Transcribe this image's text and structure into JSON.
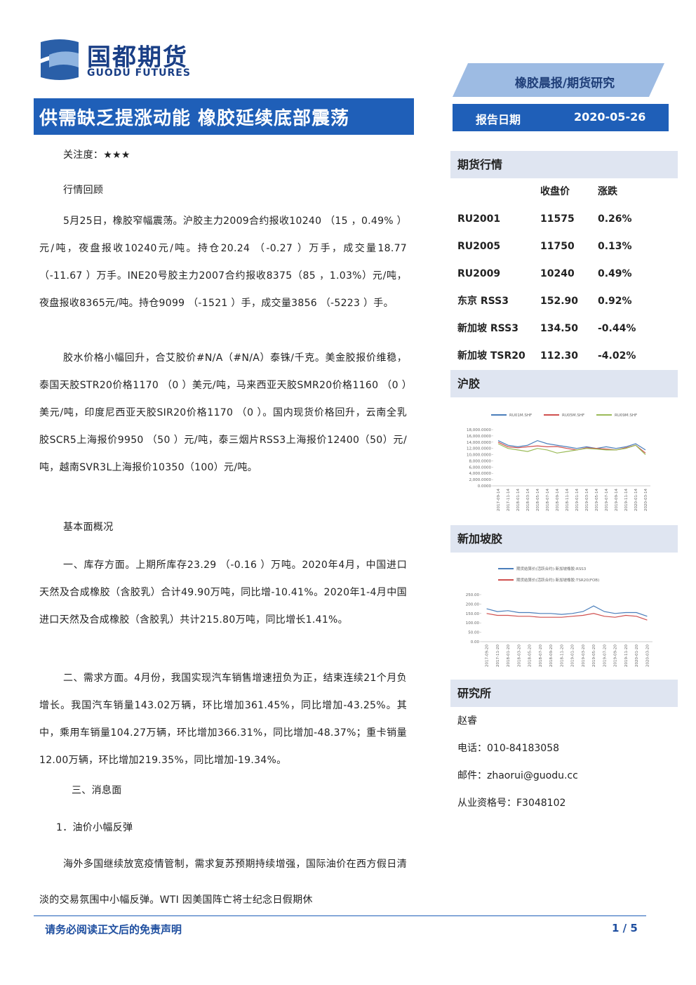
{
  "header": {
    "logo_cn": "国都期货",
    "logo_en": "GUODU FUTURES",
    "category": "橡胶晨报/期货研究",
    "title": "供需缺乏提涨动能 橡胶延续底部震荡",
    "date_label": "报告日期",
    "date": "2020-05-26"
  },
  "body": {
    "paragraphs": [
      "关注度：★★★",
      "行情回顾",
      "5月25日，橡胶窄幅震荡。沪胶主力2009合约报收10240 （15 ，0.49% ）元/吨，夜盘报收10240元/吨。持仓20.24 （-0.27 ）万手，成交量18.77（-11.67 ）万手。INE20号胶主力2007合约报收8375（85 ，1.03%）元/吨，夜盘报收8365元/吨。持仓9099 （-1521 ）手，成交量3856 （-5223 ）手。",
      "胶水价格小幅回升，合艾胶价#N/A（#N/A）泰铢/千克。美金胶报价维稳，泰国天胶STR20价格1170 （0 ）美元/吨，马来西亚天胶SMR20价格1160 （0 ）美元/吨，印度尼西亚天胶SIR20价格1170 （0 ）。国内现货价格回升，云南全乳胶SCR5上海报价9950 （50 ）元/吨，泰三烟片RSS3上海报价12400（50）元/吨，越南SVR3L上海报价10350（100）元/吨。",
      "基本面概况",
      "一、库存方面。上期所库存23.29 （-0.16 ）万吨。2020年4月，中国进口天然及合成橡胶（含胶乳）合计49.90万吨，同比增-10.41%。2020年1-4月中国进口天然及合成橡胶（含胶乳）共计215.80万吨，同比增长1.41%。",
      "二、需求方面。4月份，我国实现汽车销售增速扭负为正，结束连续21个月负增长。我国汽车销量143.02万辆，环比增加361.45%，同比增加-43.25%。其中，乘用车销量104.27万辆，环比增加366.31%，同比增加-48.37%；重卡销量12.00万辆，环比增加219.35%，同比增加-19.34%。",
      "三、消息面",
      "1．油价小幅反弹",
      "海外多国继续放宽疫情管制，需求复苏预期持续增强，国际油价在西方假日清淡的交易氛围中小幅反弹。WTI 因美国阵亡将士纪念日假期休"
    ]
  },
  "sidebar": {
    "market_title": "期货行情",
    "columns": [
      "收盘价",
      "涨跌"
    ],
    "rows": [
      [
        "RU2001",
        "11575",
        "0.26%"
      ],
      [
        "RU2005",
        "11750",
        "0.13%"
      ],
      [
        "RU2009",
        "10240",
        "0.49%"
      ],
      [
        "东京 RSS3",
        "152.90",
        "0.92%"
      ],
      [
        "新加坡 RSS3",
        "134.50",
        "-0.44%"
      ],
      [
        "新加坡 TSR20",
        "112.30",
        "-4.02%"
      ]
    ],
    "section_shfe": "沪胶",
    "section_sgx": "新加坡胶",
    "section_research": "研究所",
    "contacts": [
      "赵睿",
      "电话：010-84183058",
      "邮件：zhaorui@guodu.cc",
      "从业资格号：F3048102"
    ]
  },
  "chart_data": [
    {
      "type": "line",
      "x": [
        "2017-09-14",
        "2017-11-14",
        "2018-01-14",
        "2018-03-14",
        "2018-05-14",
        "2018-07-14",
        "2018-09-14",
        "2018-11-14",
        "2019-01-14",
        "2019-03-14",
        "2019-05-14",
        "2019-07-14",
        "2019-09-14",
        "2019-11-14",
        "2020-01-14",
        "2020-03-14"
      ],
      "series": [
        {
          "name": "RU01M.SHF",
          "color": "#4a7ebb",
          "values": [
            14500,
            13000,
            12500,
            13000,
            14500,
            13500,
            13000,
            12500,
            12000,
            12500,
            12000,
            12500,
            12000,
            12500,
            13500,
            11500
          ]
        },
        {
          "name": "RU05M.SHF",
          "color": "#d0504f",
          "values": [
            14000,
            12500,
            12200,
            12500,
            12800,
            12500,
            12600,
            12000,
            11500,
            12200,
            12000,
            11800,
            11500,
            12200,
            13000,
            10500
          ]
        },
        {
          "name": "RU09M.SHF",
          "color": "#9bbb59",
          "values": [
            13500,
            12000,
            11500,
            11000,
            12000,
            11500,
            10500,
            11000,
            11500,
            12000,
            11800,
            11500,
            11500,
            12000,
            13000,
            10000
          ]
        }
      ],
      "ylim": [
        0,
        18000
      ],
      "yticks": [
        {
          "value": 0,
          "label": "0.0000"
        },
        {
          "value": 2000,
          "label": "2,000.0000"
        },
        {
          "value": 4000,
          "label": "4,000.0000"
        },
        {
          "value": 6000,
          "label": "6,000.0000"
        },
        {
          "value": 8000,
          "label": "8,000.0000"
        },
        {
          "value": 10000,
          "label": "10,000.0000"
        },
        {
          "value": 12000,
          "label": "12,000.0000"
        },
        {
          "value": 14000,
          "label": "14,000.0000"
        },
        {
          "value": 16000,
          "label": "16,000.0000"
        },
        {
          "value": 18000,
          "label": "18,000.0000"
        }
      ]
    },
    {
      "type": "line",
      "x": [
        "2017-09-20",
        "2017-11-20",
        "2018-01-20",
        "2018-03-20",
        "2018-05-20",
        "2018-07-20",
        "2018-09-20",
        "2018-11-20",
        "2019-01-20",
        "2019-03-20",
        "2019-05-20",
        "2019-07-20",
        "2019-09-20",
        "2019-11-20",
        "2020-01-20",
        "2020-03-20"
      ],
      "series": [
        {
          "name": "期货结算价(活跃合约):新加坡橡胶:RSS3",
          "color": "#4a7ebb",
          "values": [
            175,
            160,
            165,
            155,
            155,
            150,
            150,
            145,
            150,
            160,
            190,
            160,
            150,
            155,
            155,
            135
          ]
        },
        {
          "name": "期货结算价(活跃合约):新加坡橡胶:TSR20(FOB)",
          "color": "#d0504f",
          "values": [
            150,
            140,
            140,
            135,
            135,
            130,
            130,
            130,
            135,
            140,
            150,
            135,
            130,
            140,
            135,
            115
          ]
        }
      ],
      "ylim": [
        0,
        250
      ],
      "yticks": [
        {
          "value": 0,
          "label": "0.00"
        },
        {
          "value": 50,
          "label": "50.00"
        },
        {
          "value": 100,
          "label": "100.00"
        },
        {
          "value": 150,
          "label": "150.00"
        },
        {
          "value": 200,
          "label": "200.00"
        },
        {
          "value": 250,
          "label": "250.00"
        }
      ]
    }
  ],
  "footer": {
    "disclaimer": "请务必阅读正文后的免责声明",
    "page": "1 / 5"
  }
}
